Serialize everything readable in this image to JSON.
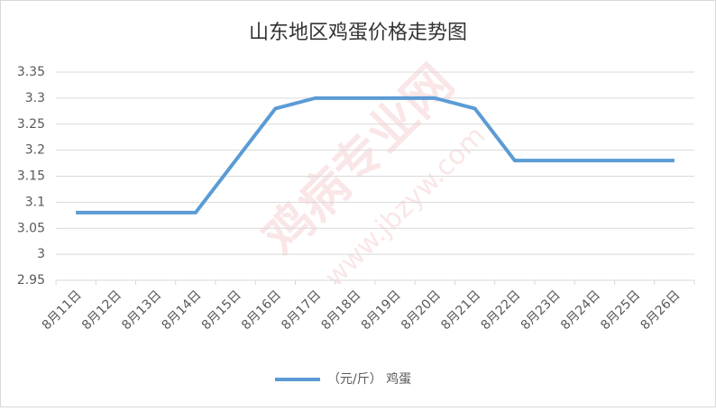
{
  "chart_data": {
    "type": "line",
    "title": "山东地区鸡蛋价格走势图",
    "categories": [
      "8月11日",
      "8月12日",
      "8月13日",
      "8月14日",
      "8月15日",
      "8月16日",
      "8月17日",
      "8月18日",
      "8月19日",
      "8月20日",
      "8月21日",
      "8月22日",
      "8月23日",
      "8月24日",
      "8月25日",
      "8月26日"
    ],
    "series": [
      {
        "name": "（元/斤） 鸡蛋",
        "color": "#5b9bd5",
        "values": [
          3.08,
          3.08,
          3.08,
          3.08,
          3.18,
          3.28,
          3.3,
          3.3,
          3.3,
          3.3,
          3.28,
          3.18,
          3.18,
          3.18,
          3.18,
          3.18
        ]
      }
    ],
    "ylim": [
      2.95,
      3.35
    ],
    "yticks": [
      2.95,
      3,
      3.05,
      3.1,
      3.15,
      3.2,
      3.25,
      3.3,
      3.35
    ],
    "grid": true,
    "legend": "bottom",
    "watermark": [
      "鸡病专业网",
      "www.jbzyw.com"
    ]
  }
}
